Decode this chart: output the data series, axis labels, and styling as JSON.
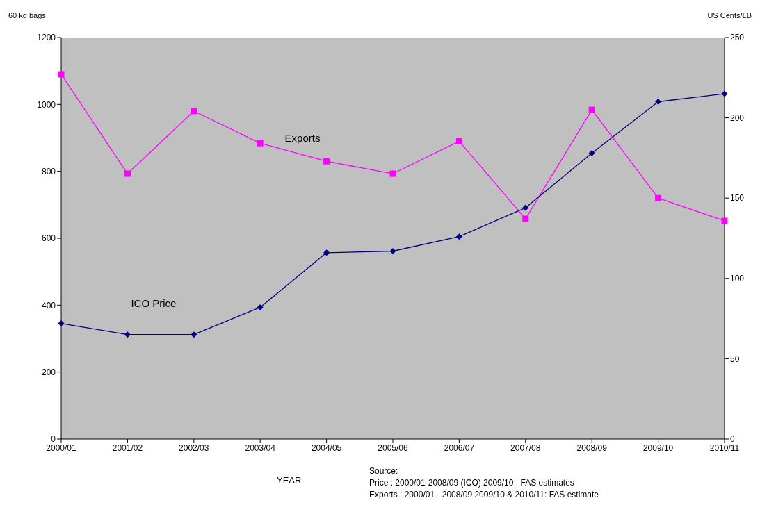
{
  "chart_data": {
    "type": "line",
    "ylabel": "60 kg bags",
    "y2label": "US Cents/LB",
    "xlabel": "YEAR",
    "categories": [
      "2000/01",
      "2001/02",
      "2002/03",
      "2003/04",
      "2004/05",
      "2005/06",
      "2006/07",
      "2007/08",
      "2008/09",
      "2009/10",
      "2010/11"
    ],
    "series": [
      {
        "name": "Exports",
        "color": "#ff00ff",
        "marker": "square",
        "values": [
          1090,
          793,
          980,
          884,
          830,
          793,
          890,
          658,
          984,
          720,
          652
        ]
      },
      {
        "name": "ICO Price",
        "color": "#000080",
        "marker": "diamond",
        "axis": "y2",
        "values": [
          72,
          65,
          65,
          82,
          116,
          117,
          126,
          144,
          178,
          210,
          215
        ]
      }
    ],
    "ylim": [
      0,
      1200
    ],
    "yticks": [
      0,
      200,
      400,
      600,
      800,
      1000,
      1200
    ],
    "y2lim": [
      0,
      250
    ],
    "y2ticks": [
      0,
      50,
      100,
      150,
      200,
      250
    ],
    "grid": false,
    "legend": false,
    "annotations": [
      "Source:",
      "Price : 2000/01-2008/09 (ICO) 2009/10 : FAS estimates",
      "Exports : 2000/01 - 2008/09 2009/10 & 2010/11: FAS estimate"
    ]
  }
}
